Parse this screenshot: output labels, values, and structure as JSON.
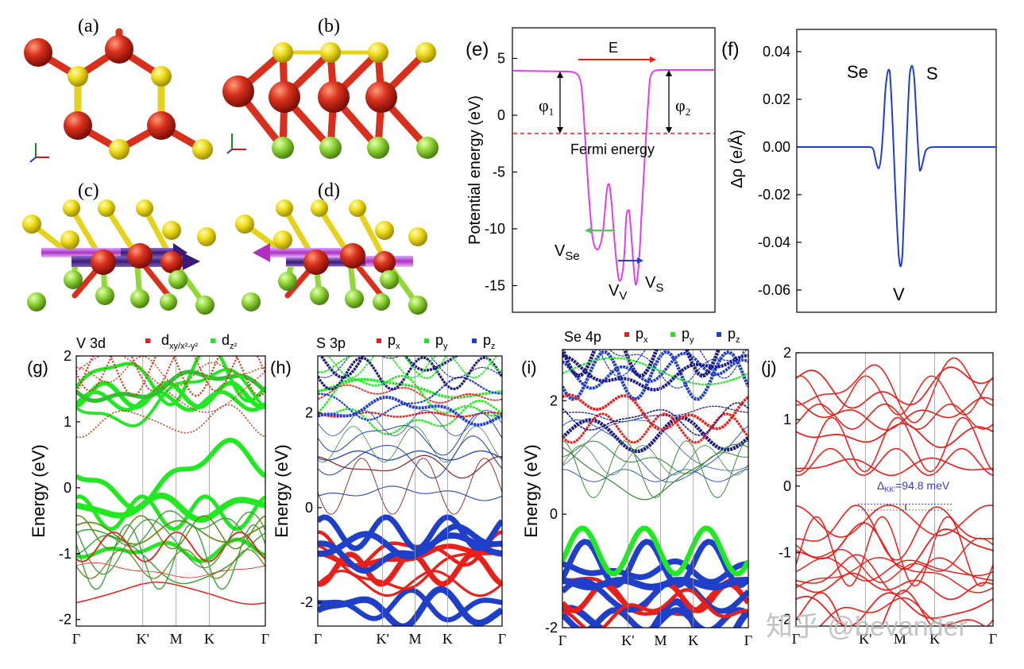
{
  "panel_labels": {
    "a": "(a)",
    "b": "(b)",
    "c": "(c)",
    "d": "(d)",
    "e": "(e)",
    "f": "(f)",
    "g": "(g)",
    "h": "(h)",
    "i": "(i)",
    "j": "(j)"
  },
  "colors": {
    "V": "#d2261a",
    "S": "#f2e21a",
    "Se": "#8ed83a",
    "magenta": "#e040e8",
    "blue": "#1f3fc8",
    "red": "#e8201a",
    "green": "#22e822",
    "arrow": "#4a2a8a"
  },
  "k_path": [
    "Γ",
    "K'",
    "M",
    "K",
    "Γ"
  ],
  "watermark": "知乎 @bevander",
  "panel_e": {
    "ylabel": "Potential energy (eV)",
    "yticks": [
      "5",
      "0",
      "-5",
      "-10",
      "-15"
    ],
    "field_label": "E",
    "phi1": "φ",
    "phi1_sub": "1",
    "phi2": "φ",
    "phi2_sub": "2",
    "fermi_label": "Fermi energy",
    "vse": "V",
    "vse_sub": "Se",
    "vv": "V",
    "vv_sub": "V",
    "vs": "V",
    "vs_sub": "S"
  },
  "panel_f": {
    "ylabel": "Δρ (e/Å)",
    "yticks": [
      "0.04",
      "0.02",
      "0.00",
      "-0.02",
      "-0.04",
      "-0.06"
    ],
    "label_se": "Se",
    "label_s": "S",
    "label_v": "V"
  },
  "panel_g": {
    "title": "V 3d",
    "legend1": "d",
    "legend1_sub": "xy/x²-y²",
    "legend2": "d",
    "legend2_sub": "z²",
    "ylabel": "Energy (eV)",
    "yticks": [
      "2",
      "1",
      "0",
      "-1",
      "-2"
    ]
  },
  "panel_h": {
    "title": "S 3p",
    "legend": [
      {
        "t": "p",
        "s": "x"
      },
      {
        "t": "p",
        "s": "y"
      },
      {
        "t": "p",
        "s": "z"
      }
    ],
    "ylabel": "Energy (eV)",
    "yticks": [
      "2",
      "0",
      "-2"
    ]
  },
  "panel_i": {
    "title": "Se 4p",
    "legend": [
      {
        "t": "p",
        "s": "x"
      },
      {
        "t": "p",
        "s": "y"
      },
      {
        "t": "p",
        "s": "z"
      }
    ],
    "ylabel": "Energy (eV)",
    "yticks": [
      "2",
      "0",
      "-2"
    ]
  },
  "panel_j": {
    "annotation": "Δ",
    "annotation_sub": "KK'",
    "annotation_value": "=94.8 meV",
    "yticks": [
      "2",
      "1",
      "0",
      "-1",
      "-2"
    ]
  }
}
